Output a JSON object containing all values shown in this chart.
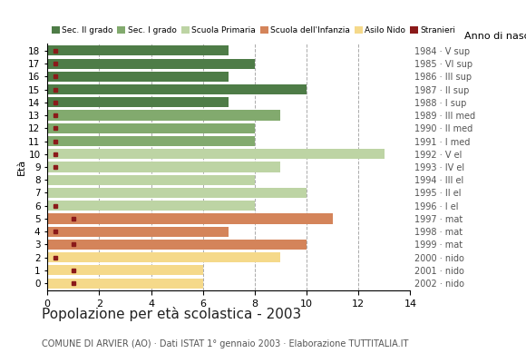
{
  "ages": [
    18,
    17,
    16,
    15,
    14,
    13,
    12,
    11,
    10,
    9,
    8,
    7,
    6,
    5,
    4,
    3,
    2,
    1,
    0
  ],
  "years": [
    "1984 · V sup",
    "1985 · VI sup",
    "1986 · III sup",
    "1987 · II sup",
    "1988 · I sup",
    "1989 · III med",
    "1990 · II med",
    "1991 · I med",
    "1992 · V el",
    "1993 · IV el",
    "1994 · III el",
    "1995 · II el",
    "1996 · I el",
    "1997 · mat",
    "1998 · mat",
    "1999 · mat",
    "2000 · nido",
    "2001 · nido",
    "2002 · nido"
  ],
  "bar_values": [
    7,
    8,
    7,
    10,
    7,
    9,
    8,
    8,
    13,
    9,
    8,
    10,
    8,
    11,
    7,
    10,
    9,
    6,
    6
  ],
  "bar_colors": [
    "#4e7c47",
    "#4e7c47",
    "#4e7c47",
    "#4e7c47",
    "#4e7c47",
    "#82aa6e",
    "#82aa6e",
    "#82aa6e",
    "#bdd4a4",
    "#bdd4a4",
    "#bdd4a4",
    "#bdd4a4",
    "#bdd4a4",
    "#d4845a",
    "#d4845a",
    "#d4845a",
    "#f5d98a",
    "#f5d98a",
    "#f5d98a"
  ],
  "stranieri_ages": [
    18,
    17,
    16,
    15,
    14,
    13,
    12,
    11,
    10,
    9,
    8,
    7,
    6,
    5,
    4,
    3,
    2,
    1,
    0
  ],
  "stranieri_show": [
    true,
    true,
    true,
    true,
    true,
    true,
    true,
    true,
    true,
    true,
    false,
    false,
    true,
    true,
    true,
    true,
    true,
    true,
    true
  ],
  "stranieri_x": [
    0.3,
    0.3,
    0.3,
    0.3,
    0.3,
    0.3,
    0.3,
    0.3,
    0.3,
    0.3,
    1.0,
    1.0,
    0.3,
    1.0,
    0.3,
    1.0,
    0.3,
    1.0,
    1.0
  ],
  "stranieri_color": "#8b1a1a",
  "legend_labels": [
    "Sec. II grado",
    "Sec. I grado",
    "Scuola Primaria",
    "Scuola dell'Infanzia",
    "Asilo Nido",
    "Stranieri"
  ],
  "legend_colors": [
    "#4e7c47",
    "#82aa6e",
    "#bdd4a4",
    "#d4845a",
    "#f5d98a",
    "#8b1a1a"
  ],
  "title": "Popolazione per età scolastica - 2003",
  "subtitle": "COMUNE DI ARVIER (AO) · Dati ISTAT 1° gennaio 2003 · Elaborazione TUTTITALIA.IT",
  "ylabel": "Età",
  "right_label": "Anno di nascita",
  "xlim": [
    0,
    14
  ],
  "xticks": [
    0,
    2,
    4,
    6,
    8,
    10,
    12,
    14
  ],
  "background_color": "#ffffff",
  "bar_height": 0.78
}
